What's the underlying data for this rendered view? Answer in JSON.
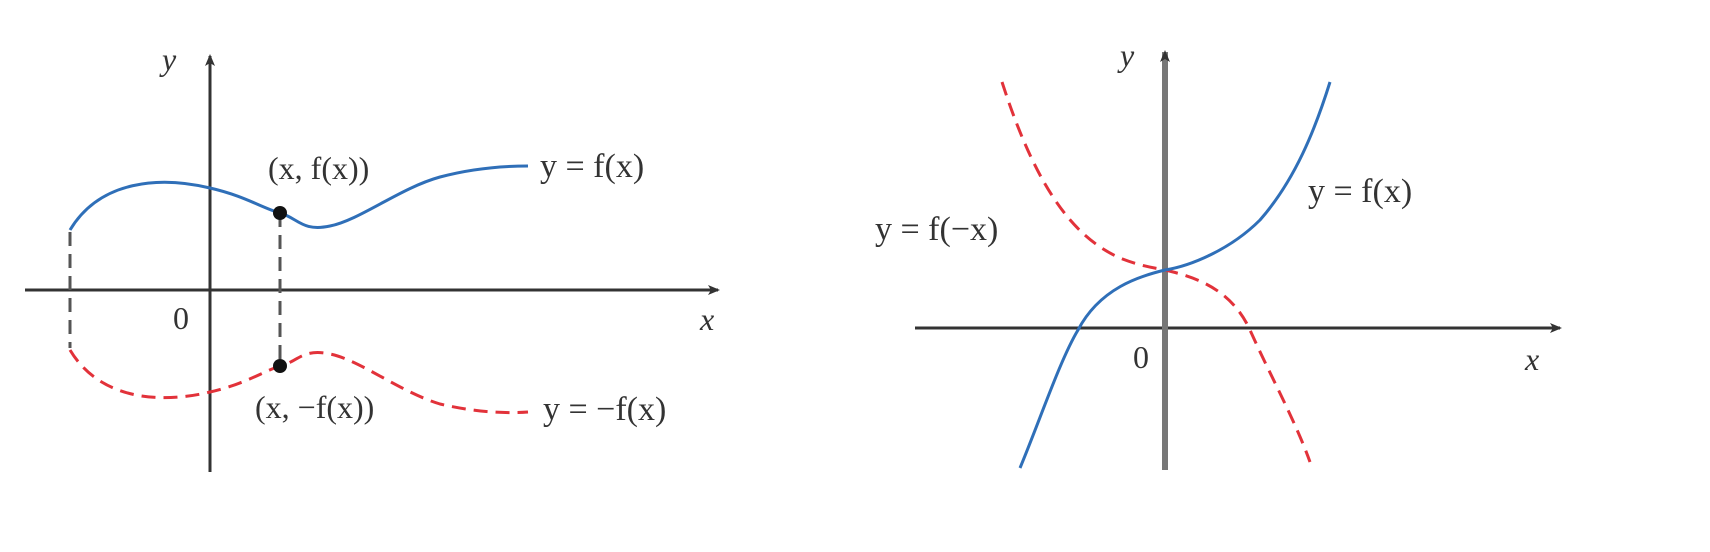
{
  "colors": {
    "axis": "#333333",
    "curve": "#2f6fb8",
    "reflected": "#e2323a",
    "connector": "#555555",
    "point": "#111111"
  },
  "left_panel": {
    "axis_x_label": "x",
    "axis_y_label": "y",
    "origin_label": "0",
    "curve_label": "y = f(x)",
    "reflected_label": "y = −f(x)",
    "point_upper_label": "(x, f(x))",
    "point_lower_label": "(x, −f(x))"
  },
  "right_panel": {
    "axis_x_label": "x",
    "axis_y_label": "y",
    "origin_label": "0",
    "curve_label": "y = f(x)",
    "reflected_label": "y = f(−x)"
  }
}
